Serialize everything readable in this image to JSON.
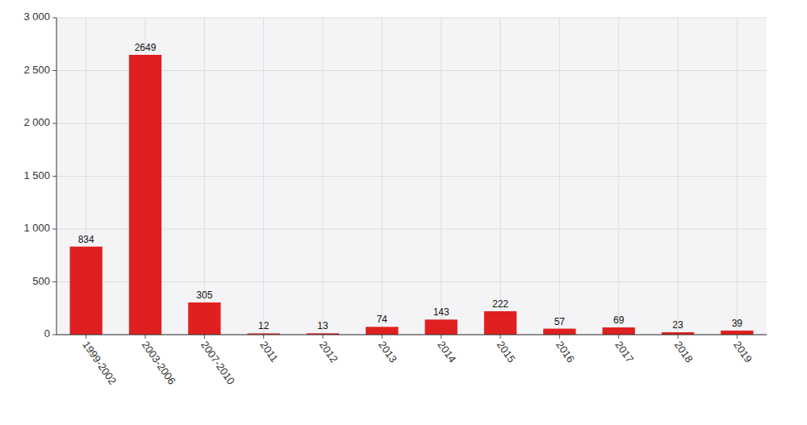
{
  "chart_data": {
    "type": "bar",
    "categories": [
      "1999-2002",
      "2003-2006",
      "2007-2010",
      "2011",
      "2012",
      "2013",
      "2014",
      "2015",
      "2016",
      "2017",
      "2018",
      "2019"
    ],
    "values": [
      834,
      2649,
      305,
      12,
      13,
      74,
      143,
      222,
      57,
      69,
      23,
      39
    ],
    "color": "#e02020",
    "ylim": [
      0,
      3000
    ],
    "yticks": [
      0,
      500,
      {
        "value": 1000,
        "label": "1 000"
      },
      {
        "value": 1500,
        "label": "1 500"
      },
      {
        "value": 2000,
        "label": "2 000"
      },
      {
        "value": 2500,
        "label": "2 500"
      },
      {
        "value": 3000,
        "label": "3 000"
      }
    ],
    "grid": true,
    "data_labels": true
  }
}
